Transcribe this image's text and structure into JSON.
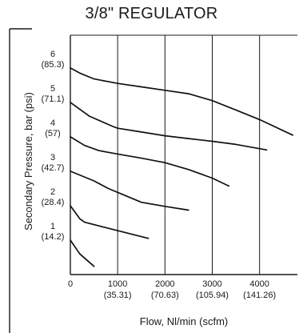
{
  "chart_data": {
    "type": "line",
    "title": "3/8\" REGULATOR",
    "xlabel": "Flow, Nl/min (scfm)",
    "ylabel": "Secondary Pressure, bar (psi)",
    "xlim": [
      0,
      4800
    ],
    "ylim": [
      0,
      6.95
    ],
    "grid": true,
    "x_ticks": [
      {
        "value": 0,
        "label": "0",
        "sublabel": ""
      },
      {
        "value": 1000,
        "label": "1000",
        "sublabel": "(35.31)"
      },
      {
        "value": 2000,
        "label": "2000",
        "sublabel": "(70.63)"
      },
      {
        "value": 3000,
        "label": "3000",
        "sublabel": "(105.94)"
      },
      {
        "value": 4000,
        "label": "4000",
        "sublabel": "(141.26)"
      }
    ],
    "y_ticks": [
      {
        "value": 1,
        "label": "1",
        "sublabel": "(14.2)"
      },
      {
        "value": 2,
        "label": "2",
        "sublabel": "(28.4)"
      },
      {
        "value": 3,
        "label": "3",
        "sublabel": "(42.7)"
      },
      {
        "value": 4,
        "label": "4",
        "sublabel": "(57)"
      },
      {
        "value": 5,
        "label": "5",
        "sublabel": "(71.1)"
      },
      {
        "value": 6,
        "label": "6",
        "sublabel": "(85.3)"
      }
    ],
    "series": [
      {
        "x": [
          0,
          200,
          500
        ],
        "y": [
          1.0,
          0.6,
          0.24
        ]
      },
      {
        "x": [
          0,
          200,
          300,
          1650
        ],
        "y": [
          2.0,
          1.62,
          1.52,
          1.05
        ]
      },
      {
        "x": [
          0,
          500,
          800,
          1100,
          1500,
          2000,
          2500
        ],
        "y": [
          3.0,
          2.72,
          2.5,
          2.33,
          2.1,
          1.98,
          1.87
        ]
      },
      {
        "x": [
          0,
          300,
          600,
          1000,
          1500,
          2000,
          2500,
          3000,
          3350
        ],
        "y": [
          4.0,
          3.75,
          3.6,
          3.5,
          3.38,
          3.25,
          3.05,
          2.8,
          2.57
        ]
      },
      {
        "x": [
          0,
          400,
          900,
          1000,
          1500,
          2000,
          2500,
          3000,
          3500,
          4150
        ],
        "y": [
          5.0,
          4.6,
          4.3,
          4.25,
          4.14,
          4.03,
          3.95,
          3.87,
          3.78,
          3.62
        ]
      },
      {
        "x": [
          0,
          200,
          500,
          1000,
          1500,
          2000,
          2500,
          3000,
          3500,
          4000,
          4700
        ],
        "y": [
          6.0,
          5.85,
          5.68,
          5.55,
          5.45,
          5.35,
          5.25,
          5.05,
          4.78,
          4.5,
          4.05
        ]
      }
    ]
  }
}
